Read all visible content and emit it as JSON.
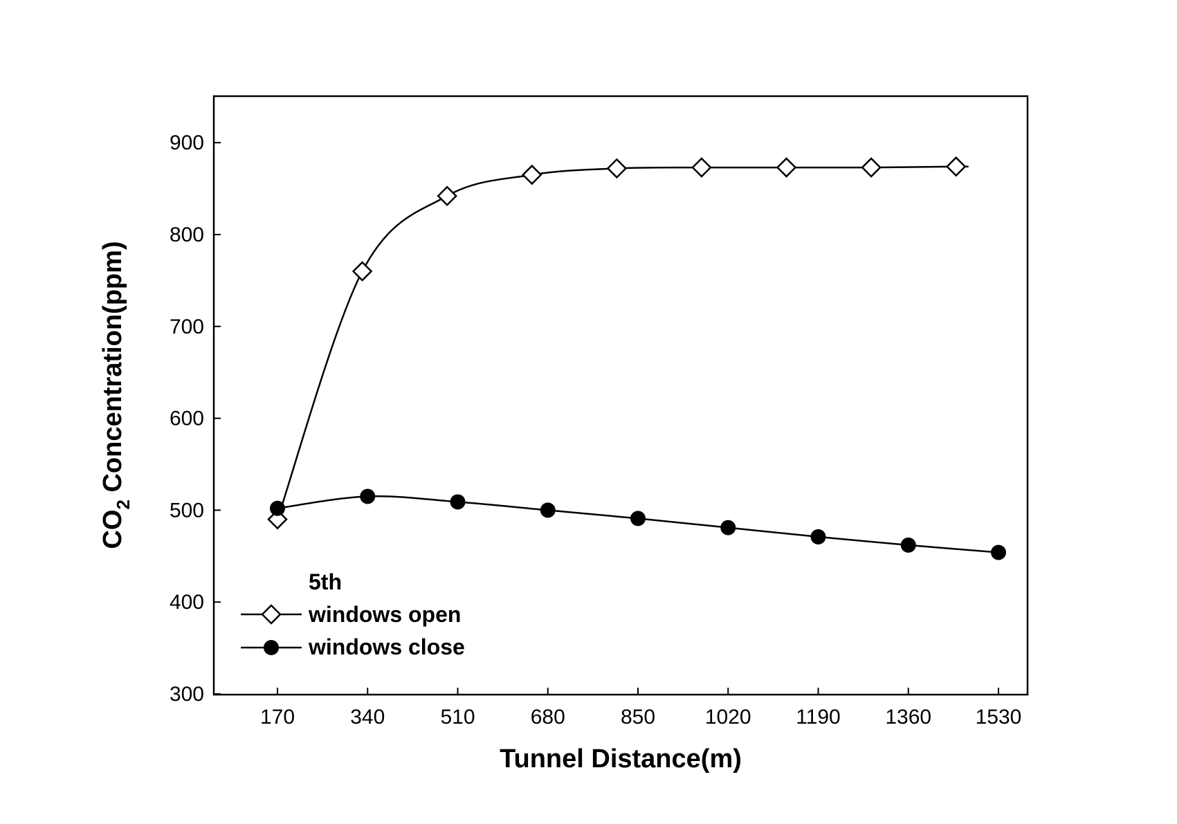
{
  "chart_data": {
    "type": "line",
    "title": "",
    "xlabel": "Tunnel Distance(m)",
    "ylabel_main": "CO",
    "ylabel_sub": "2",
    "ylabel_rest": " Concentration(ppm)",
    "ylim": [
      300,
      950
    ],
    "y_ticks": [
      300,
      400,
      500,
      600,
      700,
      800,
      900
    ],
    "x_tick_labels": [
      "170",
      "340",
      "510",
      "680",
      "850",
      "1020",
      "1190",
      "1360",
      "1530"
    ],
    "grid": false,
    "legend_title": "5th",
    "legend_position": "bottom-left",
    "series": [
      {
        "name": "windows open",
        "marker": "open-diamond",
        "x": [
          170,
          330,
          490,
          650,
          810,
          970,
          1130,
          1290,
          1450
        ],
        "y": [
          490,
          760,
          842,
          865,
          872,
          873,
          873,
          873,
          874
        ]
      },
      {
        "name": "windows close",
        "marker": "filled-circle",
        "x": [
          170,
          340,
          510,
          680,
          850,
          1020,
          1190,
          1360,
          1530
        ],
        "y": [
          502,
          515,
          509,
          500,
          491,
          481,
          471,
          462,
          454
        ]
      }
    ]
  }
}
